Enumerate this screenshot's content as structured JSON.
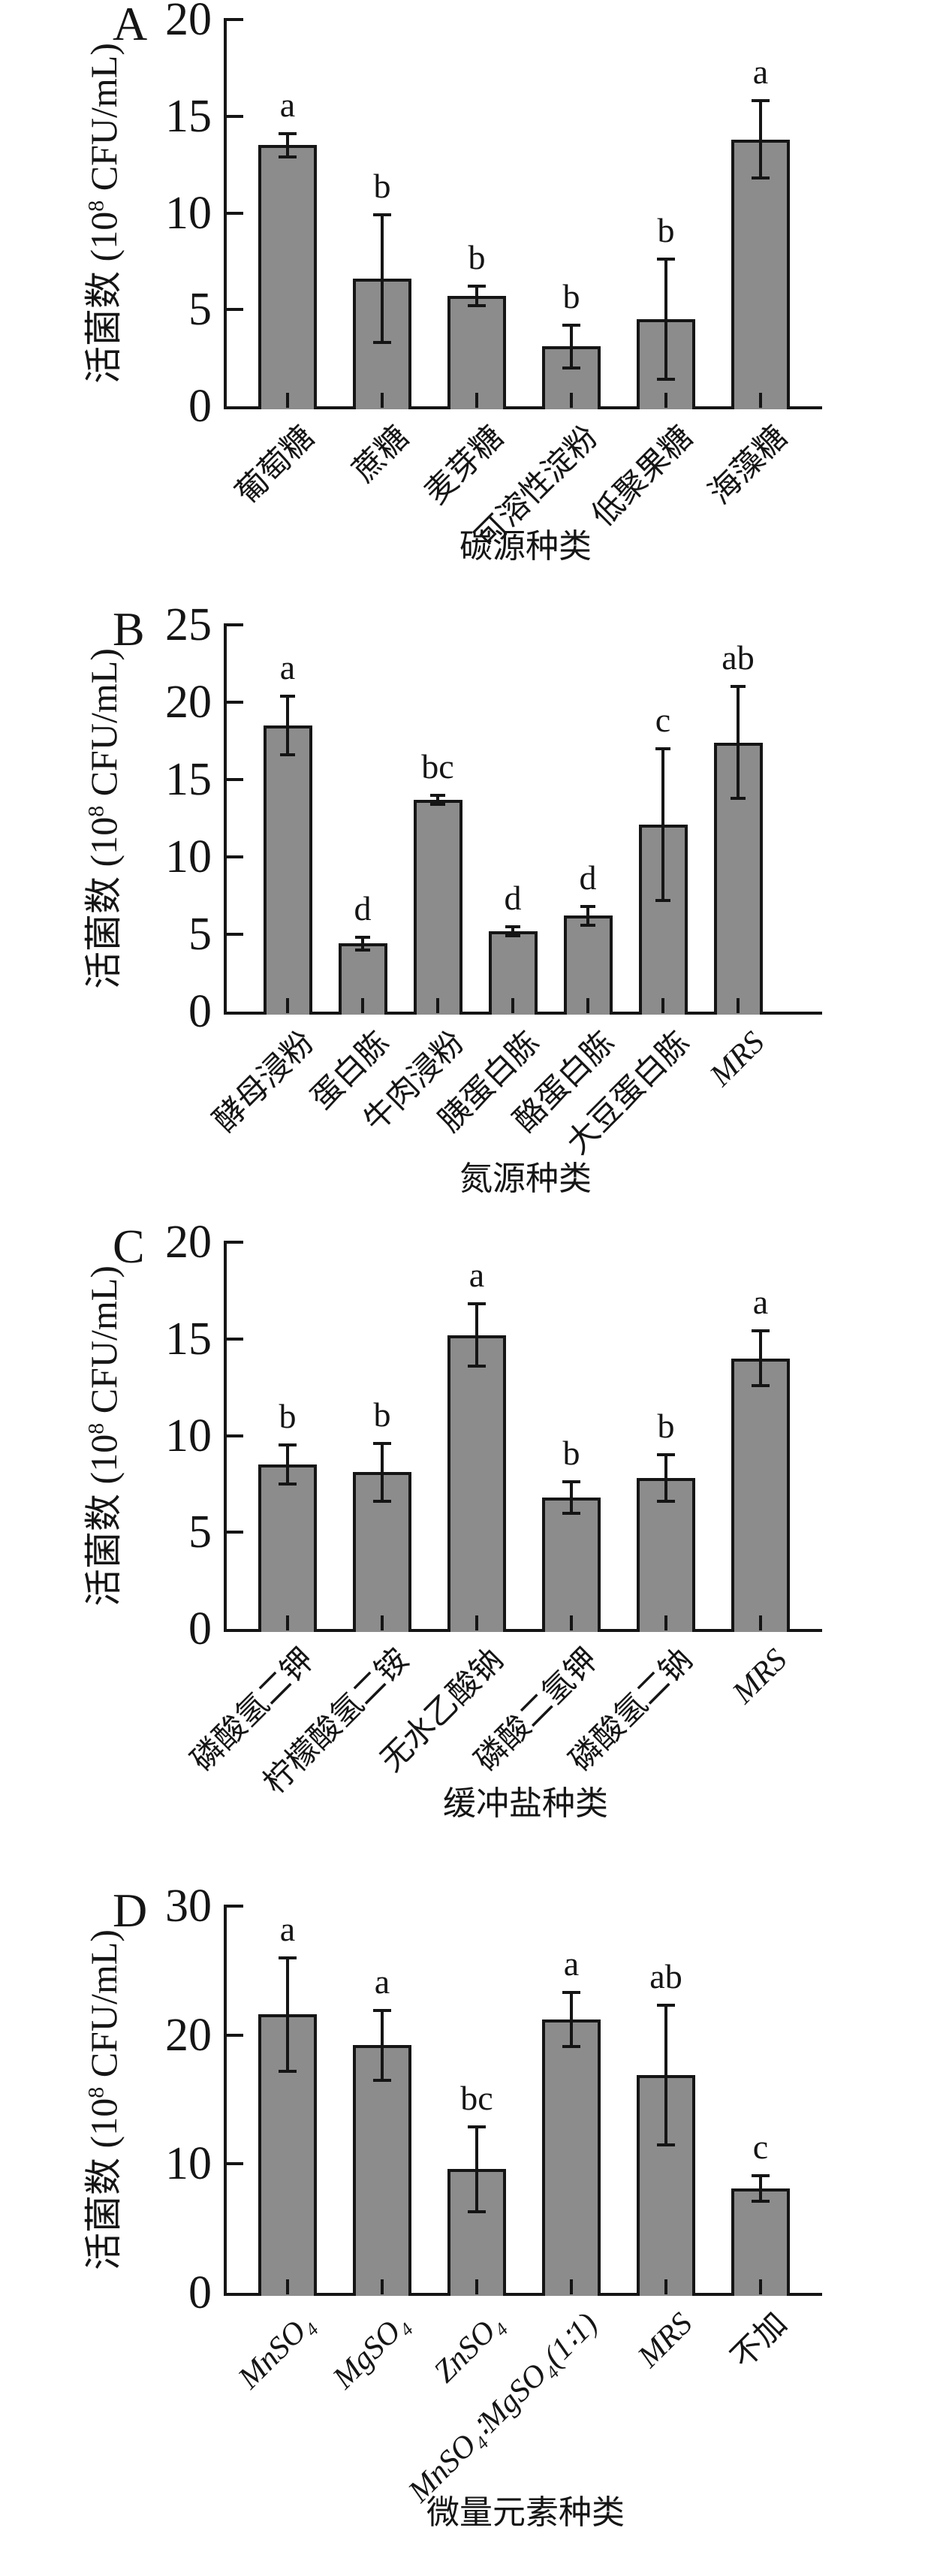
{
  "figure": {
    "bar_fill": "#8c8c8c",
    "axis_color": "#151515",
    "ylabel": {
      "text": "活菌数 (10⁸ CFU/mL)",
      "prefix": "活菌数 (10",
      "sup": "8",
      "suffix": " CFU/mL)"
    }
  },
  "chart_data": [
    {
      "type": "bar",
      "panel": "A",
      "xlabel": "碳源种类",
      "ylabel": "活菌数 (10⁸ CFU/mL)",
      "ylim": [
        0,
        20
      ],
      "yticks": [
        0,
        5,
        10,
        15,
        20
      ],
      "grid": false,
      "categories": [
        "葡萄糖",
        "蔗糖",
        "麦芽糖",
        "可溶性淀粉",
        "低聚果糖",
        "海藻糖"
      ],
      "values": [
        13.5,
        6.6,
        5.7,
        3.1,
        4.5,
        13.8
      ],
      "errors": [
        0.6,
        3.3,
        0.5,
        1.1,
        3.1,
        2.0
      ],
      "sig_letters": [
        "a",
        "b",
        "b",
        "b",
        "b",
        "a"
      ]
    },
    {
      "type": "bar",
      "panel": "B",
      "xlabel": "氮源种类",
      "ylabel": "活菌数 (10⁸ CFU/mL)",
      "ylim": [
        0,
        25
      ],
      "yticks": [
        0,
        5,
        10,
        15,
        20,
        25
      ],
      "grid": false,
      "categories": [
        "酵母浸粉",
        "蛋白胨",
        "牛肉浸粉",
        "胰蛋白胨",
        "酪蛋白胨",
        "大豆蛋白胨",
        "MRS"
      ],
      "values": [
        18.5,
        4.4,
        13.7,
        5.2,
        6.2,
        12.1,
        17.4
      ],
      "errors": [
        1.9,
        0.4,
        0.3,
        0.3,
        0.6,
        4.9,
        3.6
      ],
      "sig_letters": [
        "a",
        "d",
        "bc",
        "d",
        "d",
        "c",
        "ab"
      ]
    },
    {
      "type": "bar",
      "panel": "C",
      "xlabel": "缓冲盐种类",
      "ylabel": "活菌数 (10⁸ CFU/mL)",
      "ylim": [
        0,
        20
      ],
      "yticks": [
        0,
        5,
        10,
        15,
        20
      ],
      "grid": false,
      "categories": [
        "磷酸氢二钾",
        "柠檬酸氢二铵",
        "无水乙酸钠",
        "磷酸二氢钾",
        "磷酸氢二钠",
        "MRS"
      ],
      "values": [
        8.5,
        8.1,
        15.2,
        6.8,
        7.8,
        14.0
      ],
      "errors": [
        1.0,
        1.5,
        1.6,
        0.8,
        1.2,
        1.4
      ],
      "sig_letters": [
        "b",
        "b",
        "a",
        "b",
        "b",
        "a"
      ]
    },
    {
      "type": "bar",
      "panel": "D",
      "xlabel": "微量元素种类",
      "ylabel": "活菌数 (10⁸ CFU/mL)",
      "ylim": [
        0,
        30
      ],
      "yticks": [
        0,
        10,
        20,
        30
      ],
      "grid": false,
      "categories": [
        "MnSO₄",
        "MgSO₄",
        "ZnSO₄",
        "MnSO₄∶MgSO₄(1∶1)",
        "MRS",
        "不加"
      ],
      "values": [
        21.6,
        19.2,
        9.6,
        21.2,
        16.9,
        8.1
      ],
      "errors": [
        4.4,
        2.7,
        3.3,
        2.1,
        5.4,
        1.0
      ],
      "sig_letters": [
        "a",
        "a",
        "bc",
        "a",
        "ab",
        "c"
      ]
    }
  ]
}
